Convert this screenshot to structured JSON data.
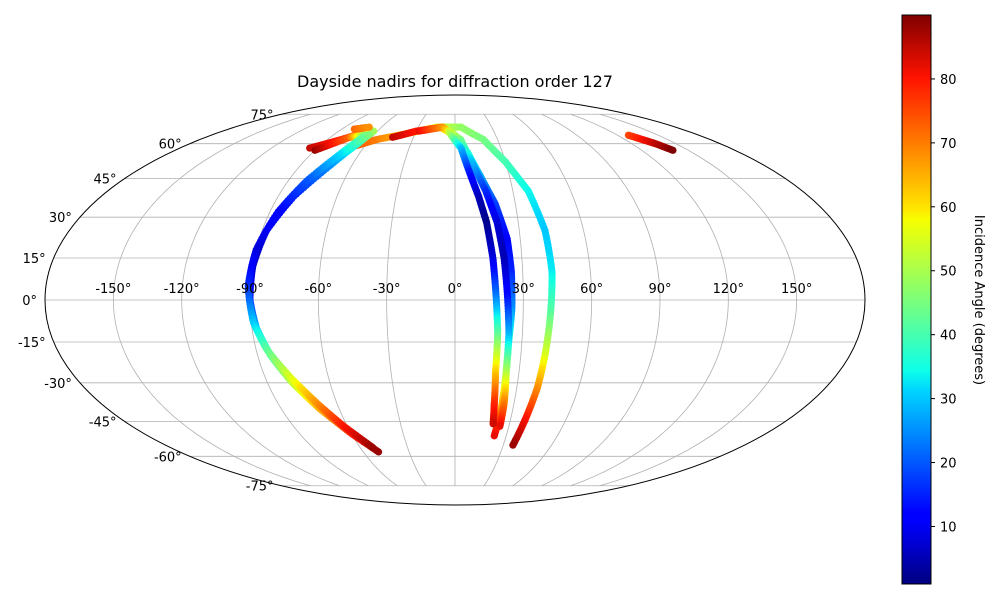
{
  "chart_data": {
    "type": "scatter",
    "projection": "mollweide",
    "title": "Dayside nadirs for diffraction order 127",
    "grid": true,
    "colormap": "jet",
    "lon_ticks": [
      "-150°",
      "-120°",
      "-90°",
      "-60°",
      "-30°",
      "0°",
      "30°",
      "60°",
      "90°",
      "120°",
      "150°"
    ],
    "lon_tick_values": [
      -150,
      -120,
      -90,
      -60,
      -30,
      0,
      30,
      60,
      90,
      120,
      150
    ],
    "lat_ticks": [
      "75°",
      "60°",
      "45°",
      "30°",
      "15°",
      "0°",
      "-15°",
      "-30°",
      "-45°",
      "-60°",
      "-75°"
    ],
    "lat_tick_values": [
      75,
      60,
      45,
      30,
      15,
      0,
      -15,
      -30,
      -45,
      -60,
      -75
    ],
    "colorbar": {
      "label": "Incidence Angle (degrees)",
      "range": [
        1,
        90
      ],
      "ticks": [
        "10",
        "20",
        "30",
        "40",
        "50",
        "60",
        "70",
        "80"
      ],
      "tick_values": [
        10,
        20,
        30,
        40,
        50,
        60,
        70,
        80
      ]
    },
    "series": [
      {
        "points": [
          {
            "lon": -70,
            "lat": 58,
            "inc": 75
          },
          {
            "lon": -55,
            "lat": 62,
            "inc": 70
          },
          {
            "lon": -35,
            "lat": 65,
            "inc": 62
          },
          {
            "lon": -15,
            "lat": 68,
            "inc": 55
          },
          {
            "lon": 5,
            "lat": 68,
            "inc": 48
          },
          {
            "lon": 20,
            "lat": 62,
            "inc": 45
          },
          {
            "lon": 30,
            "lat": 52,
            "inc": 40
          },
          {
            "lon": 38,
            "lat": 40,
            "inc": 34
          },
          {
            "lon": 42,
            "lat": 25,
            "inc": 30
          },
          {
            "lon": 43,
            "lat": 10,
            "inc": 33
          },
          {
            "lon": 42,
            "lat": -5,
            "inc": 42
          },
          {
            "lon": 41,
            "lat": -20,
            "inc": 55
          },
          {
            "lon": 40,
            "lat": -32,
            "inc": 68
          },
          {
            "lon": 38,
            "lat": -44,
            "inc": 80
          },
          {
            "lon": 36,
            "lat": -55,
            "inc": 88
          }
        ]
      },
      {
        "points": [
          {
            "lon": -45,
            "lat": 63,
            "inc": 85
          },
          {
            "lon": -30,
            "lat": 66,
            "inc": 80
          },
          {
            "lon": -12,
            "lat": 68,
            "inc": 65
          },
          {
            "lon": 0,
            "lat": 64,
            "inc": 48
          },
          {
            "lon": 8,
            "lat": 56,
            "inc": 38
          },
          {
            "lon": 14,
            "lat": 46,
            "inc": 28
          },
          {
            "lon": 20,
            "lat": 35,
            "inc": 18
          },
          {
            "lon": 24,
            "lat": 22,
            "inc": 12
          },
          {
            "lon": 25,
            "lat": 10,
            "inc": 15
          },
          {
            "lon": 25,
            "lat": -3,
            "inc": 25
          },
          {
            "lon": 24,
            "lat": -16,
            "inc": 40
          },
          {
            "lon": 24,
            "lat": -30,
            "inc": 55
          },
          {
            "lon": 24,
            "lat": -42,
            "inc": 70
          },
          {
            "lon": 23,
            "lat": -51,
            "inc": 82
          }
        ]
      },
      {
        "points": [
          {
            "lon": -28,
            "lat": 66,
            "inc": 82
          },
          {
            "lon": -10,
            "lat": 68,
            "inc": 68
          },
          {
            "lon": 4,
            "lat": 62,
            "inc": 45
          },
          {
            "lon": 10,
            "lat": 52,
            "inc": 30
          },
          {
            "lon": 16,
            "lat": 40,
            "inc": 16
          },
          {
            "lon": 20,
            "lat": 28,
            "inc": 8
          },
          {
            "lon": 22,
            "lat": 15,
            "inc": 5
          },
          {
            "lon": 23,
            "lat": 2,
            "inc": 12
          },
          {
            "lon": 24,
            "lat": -12,
            "inc": 28
          },
          {
            "lon": 24,
            "lat": -26,
            "inc": 50
          },
          {
            "lon": 25,
            "lat": -38,
            "inc": 70
          },
          {
            "lon": 25,
            "lat": -47,
            "inc": 82
          }
        ]
      },
      {
        "points": [
          {
            "lon": -5,
            "lat": 66,
            "inc": 55
          },
          {
            "lon": 4,
            "lat": 58,
            "inc": 30
          },
          {
            "lon": 8,
            "lat": 48,
            "inc": 15
          },
          {
            "lon": 12,
            "lat": 38,
            "inc": 6
          },
          {
            "lon": 15,
            "lat": 28,
            "inc": 2
          },
          {
            "lon": 17,
            "lat": 15,
            "inc": 8
          },
          {
            "lon": 18,
            "lat": 2,
            "inc": 22
          },
          {
            "lon": 19,
            "lat": -12,
            "inc": 42
          },
          {
            "lon": 19,
            "lat": -26,
            "inc": 62
          },
          {
            "lon": 20,
            "lat": -38,
            "inc": 78
          },
          {
            "lon": 21,
            "lat": -46,
            "inc": 84
          }
        ]
      },
      {
        "points": [
          {
            "lon": -95,
            "lat": 58,
            "inc": 85
          },
          {
            "lon": -80,
            "lat": 62,
            "inc": 78
          },
          {
            "lon": -70,
            "lat": 65,
            "inc": 72
          },
          {
            "lon": -63,
            "lat": 66,
            "inc": 50
          },
          {
            "lon": -66,
            "lat": 60,
            "inc": 38
          },
          {
            "lon": -73,
            "lat": 50,
            "inc": 25
          },
          {
            "lon": -82,
            "lat": 38,
            "inc": 15
          },
          {
            "lon": -88,
            "lat": 25,
            "inc": 8
          },
          {
            "lon": -90,
            "lat": 12,
            "inc": 6
          },
          {
            "lon": -90,
            "lat": 0,
            "inc": 15
          },
          {
            "lon": -88,
            "lat": -10,
            "inc": 28
          },
          {
            "lon": -84,
            "lat": -20,
            "inc": 40
          },
          {
            "lon": -78,
            "lat": -30,
            "inc": 52
          },
          {
            "lon": -70,
            "lat": -40,
            "inc": 65
          },
          {
            "lon": -60,
            "lat": -50,
            "inc": 78
          },
          {
            "lon": -50,
            "lat": -58,
            "inc": 88
          }
        ]
      },
      {
        "points": [
          {
            "lon": -90,
            "lat": 57,
            "inc": 88
          },
          {
            "lon": -76,
            "lat": 63,
            "inc": 72
          },
          {
            "lon": -66,
            "lat": 64,
            "inc": 45
          },
          {
            "lon": -72,
            "lat": 55,
            "inc": 32
          },
          {
            "lon": -80,
            "lat": 44,
            "inc": 20
          },
          {
            "lon": -86,
            "lat": 32,
            "inc": 12
          },
          {
            "lon": -90,
            "lat": 18,
            "inc": 8
          },
          {
            "lon": -91,
            "lat": 5,
            "inc": 16
          },
          {
            "lon": -89,
            "lat": -8,
            "inc": 30
          },
          {
            "lon": -85,
            "lat": -18,
            "inc": 42
          },
          {
            "lon": -78,
            "lat": -28,
            "inc": 55
          },
          {
            "lon": -70,
            "lat": -38,
            "inc": 68
          },
          {
            "lon": -62,
            "lat": -47,
            "inc": 80
          },
          {
            "lon": -52,
            "lat": -56,
            "inc": 88
          }
        ]
      },
      {
        "points": [
          {
            "lon": 128,
            "lat": 64,
            "inc": 75
          },
          {
            "lon": 132,
            "lat": 62,
            "inc": 80
          },
          {
            "lon": 136,
            "lat": 60,
            "inc": 85
          },
          {
            "lon": 140,
            "lat": 57,
            "inc": 90
          }
        ]
      },
      {
        "points": [
          {
            "lon": -80,
            "lat": 67,
            "inc": 72
          },
          {
            "lon": -70,
            "lat": 68,
            "inc": 68
          }
        ]
      }
    ]
  }
}
